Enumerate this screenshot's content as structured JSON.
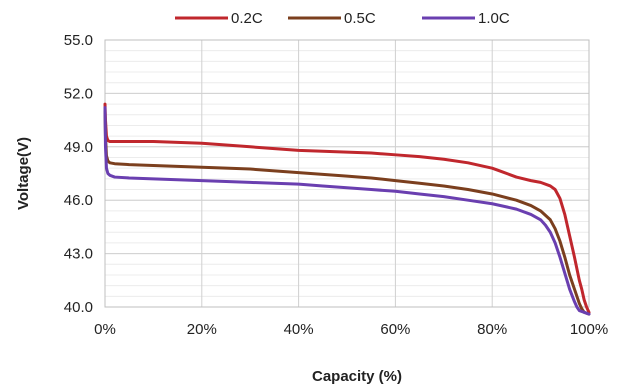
{
  "chart_data": {
    "type": "line",
    "title": "",
    "xlabel": "Capacity (%)",
    "ylabel": "Voltage(V)",
    "xlim": [
      0,
      100
    ],
    "ylim": [
      40,
      55
    ],
    "x_ticks": [
      {
        "value": 0,
        "label": "0%"
      },
      {
        "value": 20,
        "label": "20%"
      },
      {
        "value": 40,
        "label": "40%"
      },
      {
        "value": 60,
        "label": "60%"
      },
      {
        "value": 80,
        "label": "80%"
      },
      {
        "value": 100,
        "label": "100%"
      }
    ],
    "y_ticks": [
      {
        "value": 40,
        "label": "40.0"
      },
      {
        "value": 43,
        "label": "43.0"
      },
      {
        "value": 46,
        "label": "46.0"
      },
      {
        "value": 49,
        "label": "49.0"
      },
      {
        "value": 52,
        "label": "52.0"
      },
      {
        "value": 55,
        "label": "55.0"
      }
    ],
    "grid": true,
    "legend_position": "top",
    "series": [
      {
        "name": "0.2C",
        "color": "#c0272d",
        "x": [
          0,
          0.1,
          0.3,
          0.6,
          1,
          2,
          5,
          10,
          15,
          20,
          25,
          30,
          35,
          40,
          45,
          50,
          55,
          60,
          65,
          70,
          75,
          80,
          82,
          85,
          88,
          90,
          92,
          93,
          94,
          95,
          96,
          97,
          98,
          98.5,
          99,
          99.5,
          100
        ],
        "y": [
          51.4,
          50.5,
          49.6,
          49.35,
          49.3,
          49.3,
          49.3,
          49.3,
          49.25,
          49.2,
          49.1,
          49.0,
          48.9,
          48.8,
          48.75,
          48.7,
          48.65,
          48.55,
          48.45,
          48.3,
          48.1,
          47.8,
          47.6,
          47.3,
          47.1,
          47.0,
          46.8,
          46.6,
          46.1,
          45.2,
          44.0,
          42.8,
          41.5,
          41.0,
          40.4,
          40.0,
          39.7
        ]
      },
      {
        "name": "0.5C",
        "color": "#7b3f1e",
        "x": [
          0,
          0.1,
          0.3,
          0.6,
          1,
          2,
          5,
          10,
          15,
          20,
          25,
          30,
          35,
          40,
          45,
          50,
          55,
          60,
          65,
          70,
          75,
          80,
          85,
          88,
          90,
          92,
          93,
          94,
          95,
          96,
          97,
          97.5,
          98,
          98.5,
          99,
          100
        ],
        "y": [
          51.0,
          49.6,
          48.5,
          48.2,
          48.1,
          48.05,
          48.0,
          47.95,
          47.9,
          47.85,
          47.8,
          47.75,
          47.65,
          47.55,
          47.45,
          47.35,
          47.25,
          47.1,
          46.95,
          46.8,
          46.6,
          46.35,
          46.0,
          45.7,
          45.4,
          44.9,
          44.4,
          43.7,
          42.8,
          41.8,
          41.0,
          40.6,
          40.2,
          39.9,
          39.7,
          39.6
        ]
      },
      {
        "name": "1.0C",
        "color": "#6a3fb0",
        "x": [
          0,
          0.1,
          0.3,
          0.6,
          1,
          2,
          5,
          10,
          15,
          20,
          25,
          30,
          35,
          40,
          45,
          50,
          55,
          60,
          65,
          70,
          75,
          80,
          85,
          88,
          90,
          91,
          92,
          93,
          94,
          95,
          96,
          97,
          97.5,
          98,
          99,
          100
        ],
        "y": [
          51.2,
          49.0,
          47.8,
          47.5,
          47.4,
          47.3,
          47.25,
          47.2,
          47.15,
          47.1,
          47.05,
          47.0,
          46.95,
          46.9,
          46.8,
          46.7,
          46.6,
          46.5,
          46.35,
          46.2,
          46.0,
          45.8,
          45.5,
          45.2,
          44.9,
          44.6,
          44.2,
          43.6,
          42.8,
          41.9,
          41.0,
          40.3,
          40.0,
          39.8,
          39.7,
          39.6
        ]
      }
    ]
  }
}
